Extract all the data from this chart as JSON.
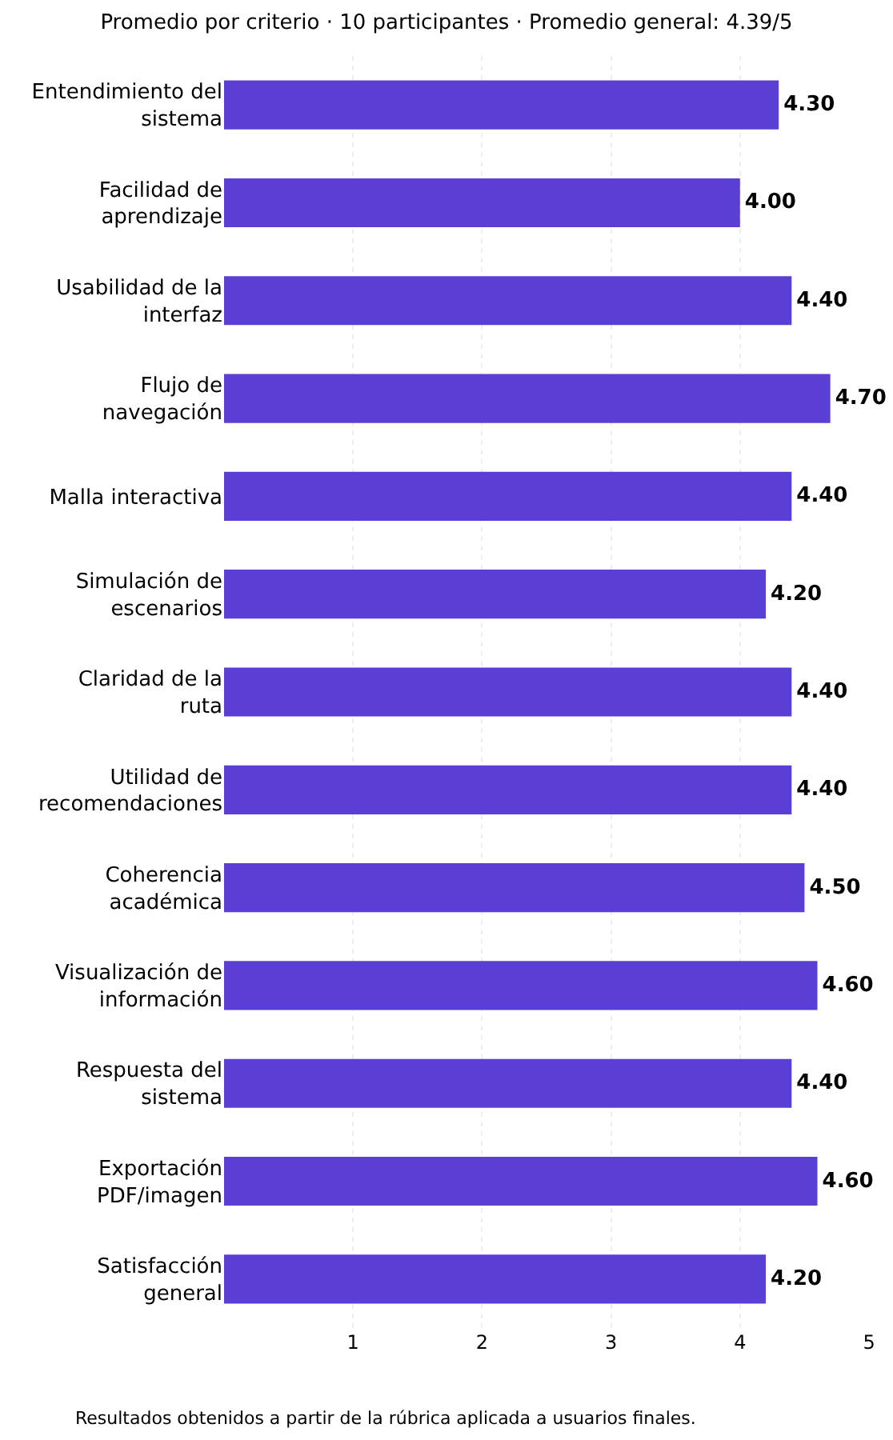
{
  "chart_data": {
    "type": "bar",
    "orientation": "horizontal",
    "title": "Promedio por criterio · 10 participantes · Promedio general: 4.39/5",
    "categories": [
      "Entendimiento del sistema",
      "Facilidad de aprendizaje",
      "Usabilidad de la interfaz",
      "Flujo de navegación",
      "Malla interactiva",
      "Simulación de escenarios",
      "Claridad de la ruta",
      "Utilidad de recomendaciones",
      "Coherencia académica",
      "Visualización de información",
      "Respuesta del sistema",
      "Exportación PDF/imagen",
      "Satisfacción general"
    ],
    "values": [
      4.3,
      4.0,
      4.4,
      4.7,
      4.4,
      4.2,
      4.4,
      4.4,
      4.5,
      4.6,
      4.4,
      4.6,
      4.2
    ],
    "value_labels": [
      "4.30",
      "4.00",
      "4.40",
      "4.70",
      "4.40",
      "4.20",
      "4.40",
      "4.40",
      "4.50",
      "4.60",
      "4.40",
      "4.60",
      "4.20"
    ],
    "color": "#5b3fd4",
    "xlim": [
      0,
      5
    ],
    "xticks": [
      1,
      2,
      3,
      4,
      5
    ],
    "grid": "x",
    "annotations": [
      "Resultados obtenidos a partir de la rúbrica aplicada a usuarios finales."
    ]
  }
}
